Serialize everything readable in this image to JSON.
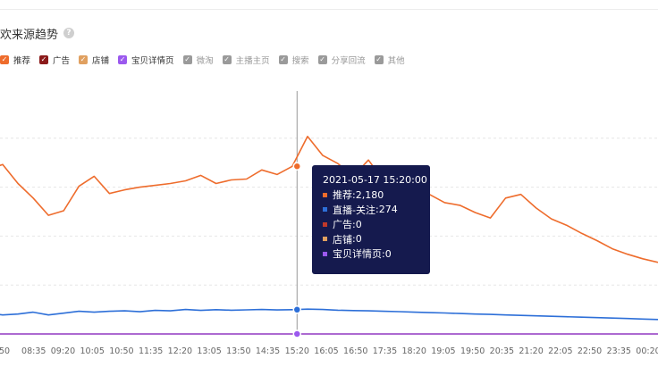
{
  "header": {
    "title": "欢来源趋势",
    "help_icon": "question-mark-icon"
  },
  "legend": [
    {
      "label": "推荐",
      "color": "#ee6c2c",
      "checked": true
    },
    {
      "label": "广告",
      "color": "#8b1a1a",
      "checked": true
    },
    {
      "label": "店铺",
      "color": "#e0a060",
      "checked": true
    },
    {
      "label": "宝贝详情页",
      "color": "#9b59ee",
      "checked": true
    },
    {
      "label": "微淘",
      "color": "#9a9a9a",
      "checked": false
    },
    {
      "label": "主播主页",
      "color": "#9a9a9a",
      "checked": false
    },
    {
      "label": "搜索",
      "color": "#9a9a9a",
      "checked": false
    },
    {
      "label": "分享回流",
      "color": "#9a9a9a",
      "checked": false
    },
    {
      "label": "其他",
      "color": "#9a9a9a",
      "checked": false
    }
  ],
  "tooltip": {
    "time": "2021-05-17 15:20:00",
    "rows": [
      {
        "label": "推荐",
        "value": "2,180",
        "color": "#ee6c2c"
      },
      {
        "label": "直播-关注",
        "value": "274",
        "color": "#2d6fd8"
      },
      {
        "label": "广告",
        "value": "0",
        "color": "#c0392b"
      },
      {
        "label": "店铺",
        "value": "0",
        "color": "#e0a060"
      },
      {
        "label": "宝贝详情页",
        "value": "0",
        "color": "#9b59ee"
      }
    ]
  },
  "chart_data": {
    "type": "line",
    "xlabel": "",
    "ylabel": "",
    "ylim": [
      0,
      2700
    ],
    "grid": true,
    "x_tick_labels": [
      "50",
      "08:35",
      "09:20",
      "10:05",
      "10:50",
      "11:35",
      "12:20",
      "13:05",
      "13:50",
      "14:35",
      "15:20",
      "16:05",
      "16:50",
      "17:35",
      "18:20",
      "19:05",
      "19:50",
      "20:35",
      "21:20",
      "22:05",
      "22:50",
      "23:35",
      "00:20"
    ],
    "highlight_x": "15:20",
    "series": [
      {
        "name": "推荐",
        "color": "#ee6c2c",
        "values": [
          1810,
          1870,
          1660,
          1500,
          1310,
          1360,
          1630,
          1740,
          1550,
          1590,
          1620,
          1640,
          1660,
          1690,
          1750,
          1660,
          1700,
          1710,
          1810,
          1760,
          1850,
          2180,
          1970,
          1880,
          1740,
          1920,
          1690,
          1620,
          1680,
          1540,
          1450,
          1420,
          1340,
          1280,
          1500,
          1540,
          1390,
          1270,
          1200,
          1110,
          1030,
          940,
          880,
          830,
          790
        ]
      },
      {
        "name": "直播-关注",
        "color": "#2d6fd8",
        "values": [
          230,
          210,
          220,
          240,
          210,
          230,
          250,
          240,
          250,
          255,
          245,
          260,
          255,
          270,
          260,
          268,
          262,
          266,
          270,
          265,
          268,
          274,
          270,
          262,
          258,
          255,
          250,
          246,
          240,
          236,
          232,
          226,
          220,
          216,
          210,
          205,
          200,
          195,
          190,
          185,
          180,
          175,
          170,
          165,
          160
        ]
      },
      {
        "name": "广告",
        "color": "#c0392b",
        "values": [
          0,
          0
        ]
      },
      {
        "name": "店铺",
        "color": "#e0a060",
        "values": [
          0,
          0
        ]
      },
      {
        "name": "宝贝详情页",
        "color": "#9b59ee",
        "values": [
          0,
          0
        ]
      }
    ]
  }
}
